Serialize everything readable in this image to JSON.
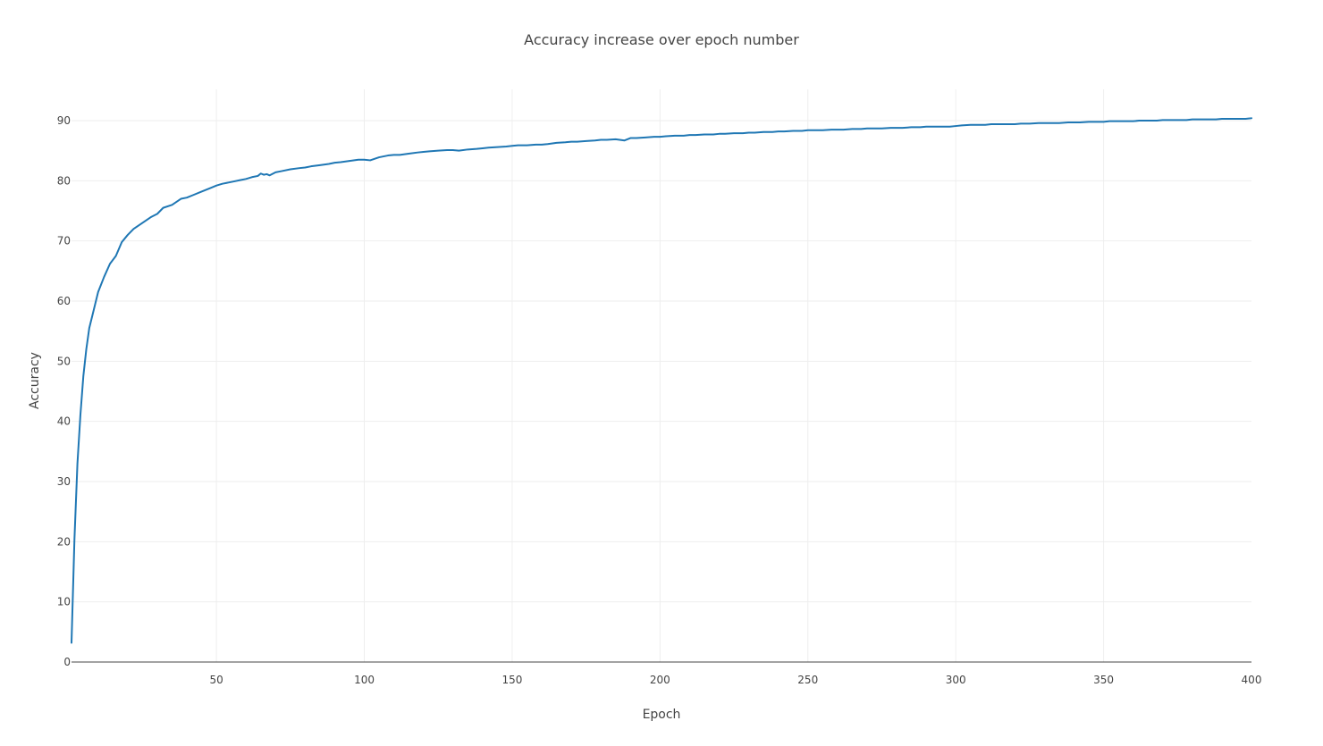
{
  "chart_data": {
    "type": "line",
    "title": "Accuracy increase over epoch number",
    "xlabel": "Epoch",
    "ylabel": "Accuracy",
    "xlim": [
      1,
      400
    ],
    "ylim": [
      0,
      95
    ],
    "x_ticks": [
      50,
      100,
      150,
      200,
      250,
      300,
      350,
      400
    ],
    "y_ticks": [
      0,
      10,
      20,
      30,
      40,
      50,
      60,
      70,
      80,
      90
    ],
    "grid": true,
    "legend": "none",
    "line_color": "#1f77b4",
    "series": [
      {
        "x": [
          1,
          2,
          3,
          4,
          5,
          6,
          7,
          8,
          9,
          10,
          12,
          14,
          16,
          18,
          20,
          22,
          25,
          28,
          30,
          32,
          35,
          38,
          40,
          42,
          45,
          48,
          50,
          52,
          55,
          58,
          60,
          62,
          64,
          65,
          66,
          67,
          68,
          70,
          72,
          75,
          78,
          80,
          82,
          85,
          88,
          90,
          92,
          95,
          98,
          100,
          102,
          105,
          108,
          110,
          112,
          115,
          118,
          120,
          122,
          125,
          128,
          130,
          132,
          135,
          138,
          140,
          142,
          145,
          148,
          150,
          152,
          155,
          158,
          160,
          162,
          165,
          168,
          170,
          172,
          175,
          178,
          180,
          182,
          185,
          188,
          190,
          192,
          195,
          198,
          200,
          202,
          205,
          208,
          210,
          212,
          215,
          218,
          220,
          222,
          225,
          228,
          230,
          232,
          235,
          238,
          240,
          242,
          245,
          248,
          250,
          252,
          255,
          258,
          260,
          262,
          265,
          268,
          270,
          272,
          275,
          278,
          280,
          282,
          285,
          288,
          290,
          292,
          295,
          298,
          300,
          302,
          305,
          308,
          310,
          312,
          315,
          318,
          320,
          322,
          325,
          328,
          330,
          332,
          335,
          338,
          340,
          342,
          345,
          348,
          350,
          352,
          355,
          358,
          360,
          362,
          365,
          368,
          370,
          372,
          375,
          378,
          380,
          382,
          385,
          388,
          390,
          392,
          395,
          398,
          400
        ],
        "y": [
          3.2,
          20.5,
          33.0,
          41.0,
          47.5,
          52.0,
          55.5,
          57.5,
          59.5,
          61.5,
          64.0,
          66.2,
          67.5,
          69.8,
          71.0,
          72.0,
          73.0,
          74.0,
          74.5,
          75.5,
          76.0,
          77.0,
          77.2,
          77.6,
          78.2,
          78.8,
          79.2,
          79.5,
          79.8,
          80.1,
          80.3,
          80.6,
          80.8,
          81.2,
          81.0,
          81.1,
          80.9,
          81.4,
          81.6,
          81.9,
          82.1,
          82.2,
          82.4,
          82.6,
          82.8,
          83.0,
          83.1,
          83.3,
          83.5,
          83.5,
          83.4,
          83.9,
          84.2,
          84.3,
          84.3,
          84.5,
          84.7,
          84.8,
          84.9,
          85.0,
          85.1,
          85.1,
          85.0,
          85.2,
          85.3,
          85.4,
          85.5,
          85.6,
          85.7,
          85.8,
          85.9,
          85.9,
          86.0,
          86.0,
          86.1,
          86.3,
          86.4,
          86.5,
          86.5,
          86.6,
          86.7,
          86.8,
          86.8,
          86.9,
          86.7,
          87.1,
          87.1,
          87.2,
          87.3,
          87.3,
          87.4,
          87.5,
          87.5,
          87.6,
          87.6,
          87.7,
          87.7,
          87.8,
          87.8,
          87.9,
          87.9,
          88.0,
          88.0,
          88.1,
          88.1,
          88.2,
          88.2,
          88.3,
          88.3,
          88.4,
          88.4,
          88.4,
          88.5,
          88.5,
          88.5,
          88.6,
          88.6,
          88.7,
          88.7,
          88.7,
          88.8,
          88.8,
          88.8,
          88.9,
          88.9,
          89.0,
          89.0,
          89.0,
          89.0,
          89.1,
          89.2,
          89.3,
          89.3,
          89.3,
          89.4,
          89.4,
          89.4,
          89.4,
          89.5,
          89.5,
          89.6,
          89.6,
          89.6,
          89.6,
          89.7,
          89.7,
          89.7,
          89.8,
          89.8,
          89.8,
          89.9,
          89.9,
          89.9,
          89.9,
          90.0,
          90.0,
          90.0,
          90.1,
          90.1,
          90.1,
          90.1,
          90.2,
          90.2,
          90.2,
          90.2,
          90.3,
          90.3,
          90.3,
          90.3,
          90.4
        ]
      }
    ]
  }
}
